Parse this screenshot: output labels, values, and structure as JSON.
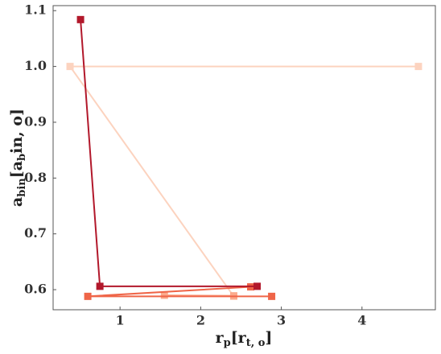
{
  "chart_data": {
    "type": "line",
    "x_label": [
      "r",
      "p",
      "[r",
      "t, o",
      "]"
    ],
    "y_label": [
      "a",
      "bin",
      "[a",
      "b",
      "in, o]"
    ],
    "xlim": [
      0.17,
      4.91
    ],
    "ylim": [
      0.564,
      1.109
    ],
    "xticks": [
      1,
      2,
      3,
      4
    ],
    "yticks": [
      0.6,
      0.7,
      0.8,
      0.9,
      {
        "value": 1.0,
        "label": "1.0"
      },
      1.1
    ],
    "grid": false,
    "series": [
      {
        "color": "#fcd3bf",
        "x": [
          4.7,
          0.38,
          2.41
        ],
        "values": [
          1.0,
          1.0,
          0.588
        ]
      },
      {
        "color": "#fbaa8c",
        "x": [
          1.55,
          2.41
        ],
        "values": [
          0.59,
          0.589
        ]
      },
      {
        "color": "#ef6548",
        "x": [
          2.88,
          0.6,
          2.62
        ],
        "values": [
          0.588,
          0.588,
          0.605
        ]
      },
      {
        "color": "#b2182b",
        "x": [
          0.51,
          0.75,
          2.7
        ],
        "values": [
          1.084,
          0.606,
          0.606
        ]
      }
    ]
  }
}
